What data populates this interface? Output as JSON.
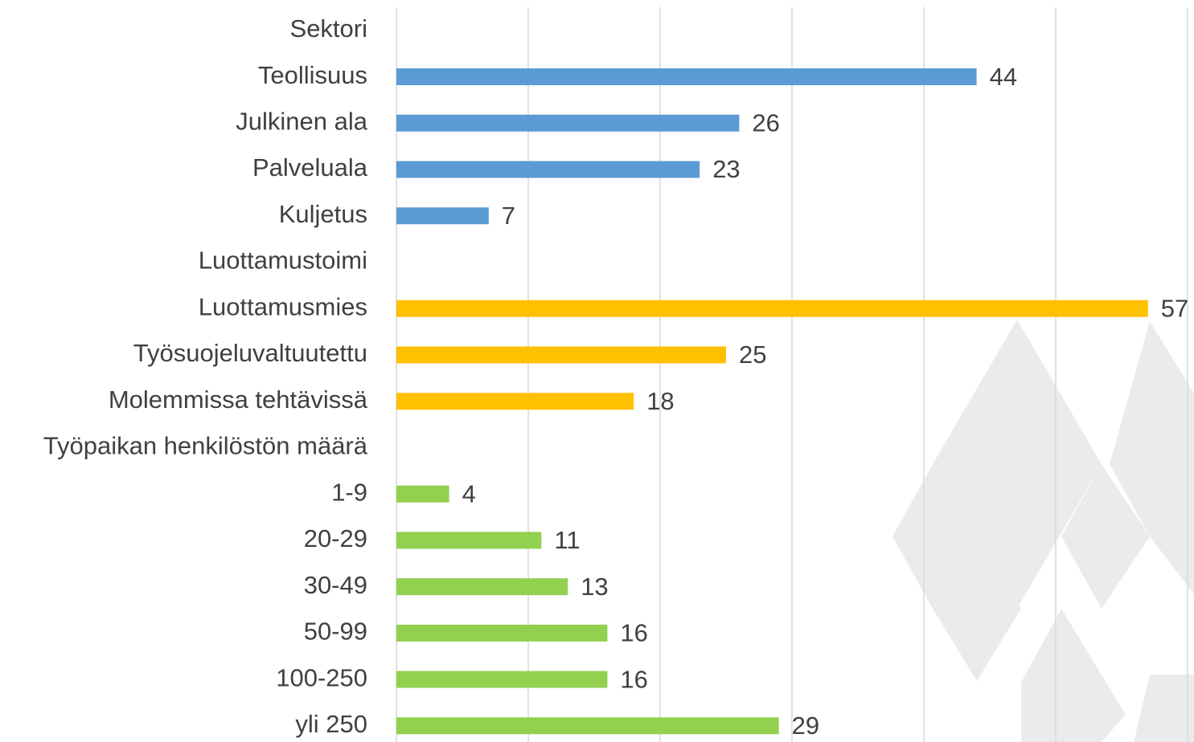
{
  "chart_data": {
    "type": "hbar",
    "categories": [
      "Sektori",
      "Teollisuus",
      "Julkinen ala",
      "Palveluala",
      "Kuljetus",
      "Luottamustoimi",
      "Luottamusmies",
      "Työsuojeluvaltuutettu",
      "Molemmissa tehtävissä",
      "Työpaikan henkilöstön määrä",
      "1-9",
      "20-29",
      "30-49",
      "50-99",
      "100-250",
      "yli 250"
    ],
    "values": [
      null,
      44,
      26,
      23,
      7,
      null,
      57,
      25,
      18,
      null,
      4,
      11,
      13,
      16,
      16,
      29
    ],
    "colors": [
      null,
      "#5b9bd5",
      "#5b9bd5",
      "#5b9bd5",
      "#5b9bd5",
      null,
      "#ffc000",
      "#ffc000",
      "#ffc000",
      null,
      "#92d050",
      "#92d050",
      "#92d050",
      "#92d050",
      "#92d050",
      "#92d050"
    ],
    "xlim": [
      0,
      60
    ],
    "xticks": [
      0,
      10,
      20,
      30,
      40,
      50,
      60
    ],
    "grid": true
  }
}
